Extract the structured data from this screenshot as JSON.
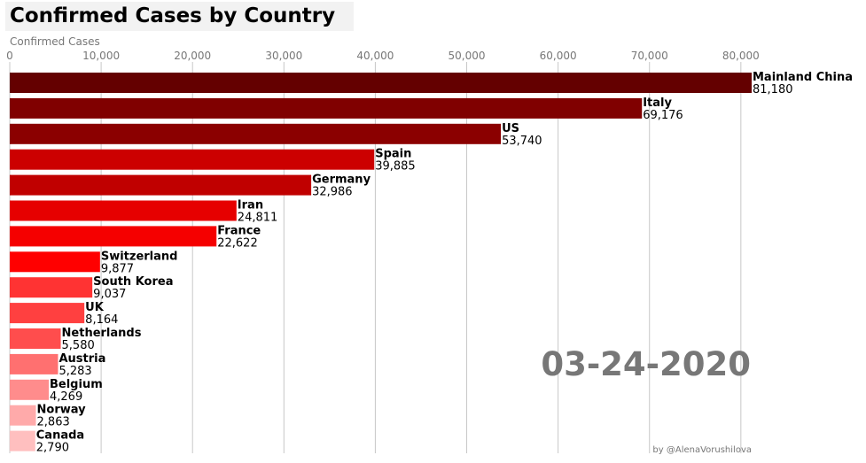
{
  "chart_data": {
    "type": "bar",
    "orientation": "horizontal",
    "title": "Confirmed Cases by Country",
    "xlabel": "Confirmed Cases",
    "xlim": [
      0,
      81180
    ],
    "xticks": [
      0,
      10000,
      20000,
      30000,
      40000,
      50000,
      60000,
      70000,
      80000
    ],
    "xtick_labels": [
      "0",
      "10,000",
      "20,000",
      "30,000",
      "40,000",
      "50,000",
      "60,000",
      "70,000",
      "80,000"
    ],
    "grid": "vertical",
    "date_label": "03-24-2020",
    "credit": "by @AlenaVorushilova",
    "bars": [
      {
        "name": "Mainland China",
        "value": 81180,
        "label": "81,180",
        "color": "#640000"
      },
      {
        "name": "Italy",
        "value": 69176,
        "label": "69,176",
        "color": "#800000"
      },
      {
        "name": "US",
        "value": 53740,
        "label": "53,740",
        "color": "#8b0000"
      },
      {
        "name": "Spain",
        "value": 39885,
        "label": "39,885",
        "color": "#cc0000"
      },
      {
        "name": "Germany",
        "value": 32986,
        "label": "32,986",
        "color": "#c00000"
      },
      {
        "name": "Iran",
        "value": 24811,
        "label": "24,811",
        "color": "#e60000"
      },
      {
        "name": "France",
        "value": 22622,
        "label": "22,622",
        "color": "#f50000"
      },
      {
        "name": "Switzerland",
        "value": 9877,
        "label": "9,877",
        "color": "#ff0000"
      },
      {
        "name": "South Korea",
        "value": 9037,
        "label": "9,037",
        "color": "#ff3333"
      },
      {
        "name": "UK",
        "value": 8164,
        "label": "8,164",
        "color": "#ff4040"
      },
      {
        "name": "Netherlands",
        "value": 5580,
        "label": "5,580",
        "color": "#ff4d4d"
      },
      {
        "name": "Austria",
        "value": 5283,
        "label": "5,283",
        "color": "#ff7070"
      },
      {
        "name": "Belgium",
        "value": 4269,
        "label": "4,269",
        "color": "#ff8c8c"
      },
      {
        "name": "Norway",
        "value": 2863,
        "label": "2,863",
        "color": "#ffaaaa"
      },
      {
        "name": "Canada",
        "value": 2790,
        "label": "2,790",
        "color": "#ffbfbf"
      }
    ]
  }
}
